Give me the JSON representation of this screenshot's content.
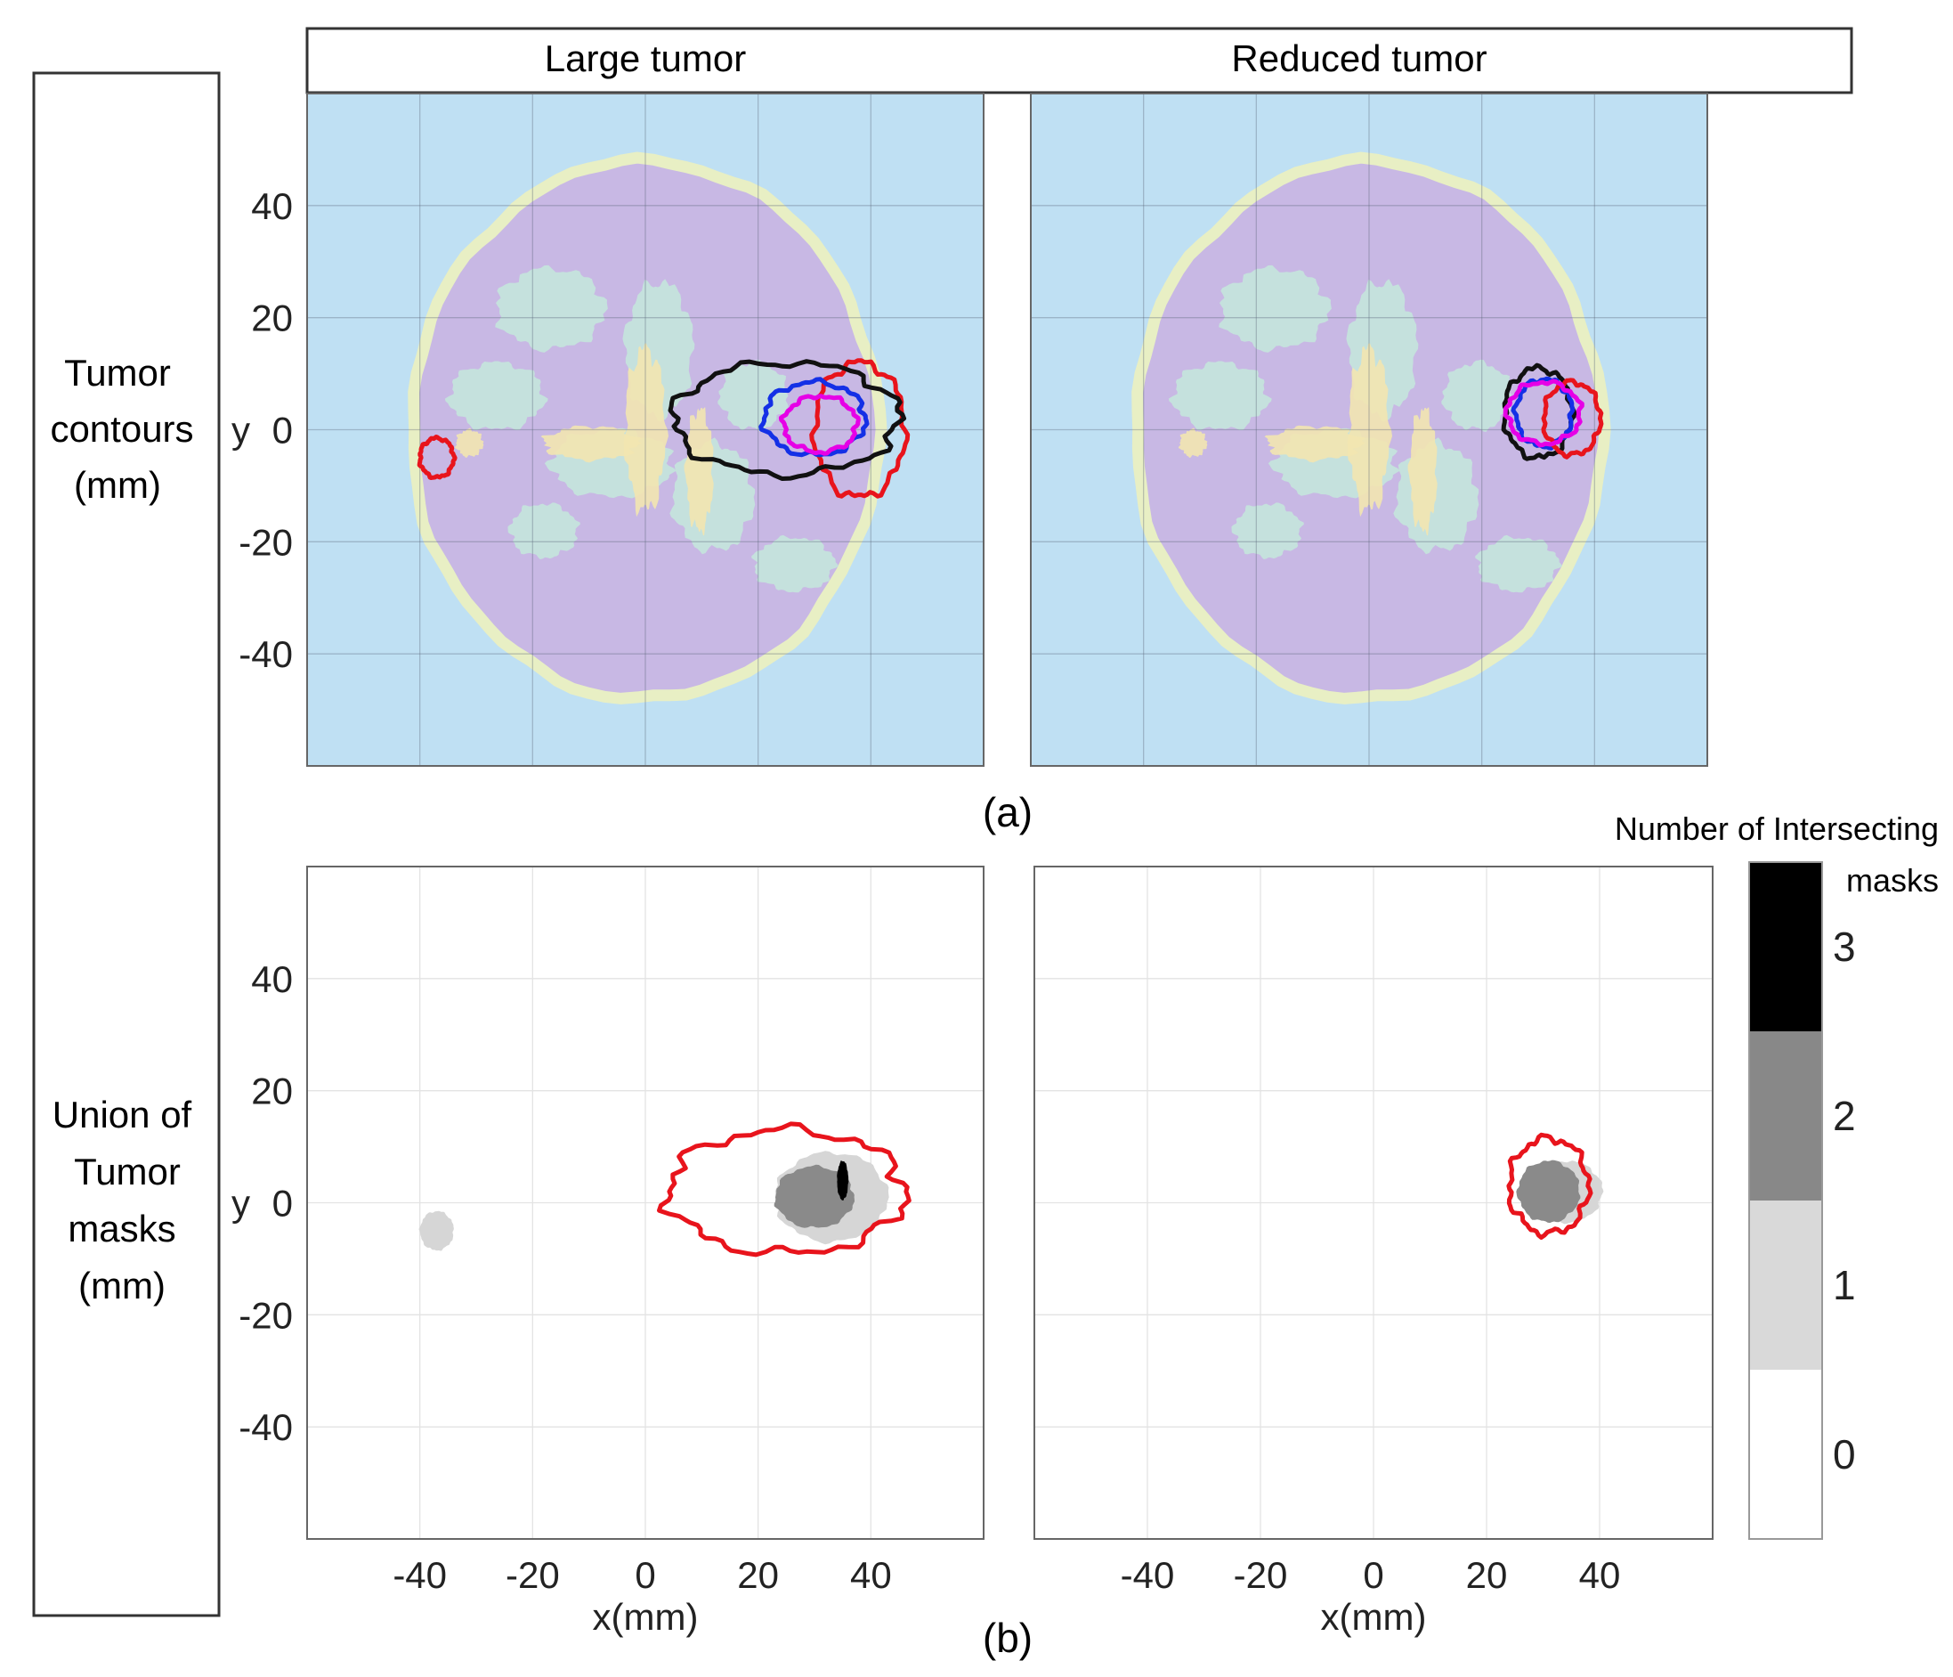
{
  "header": {
    "col_left": "Large tumor",
    "col_right": "Reduced tumor"
  },
  "rows": {
    "top": {
      "label_lines": [
        "Tumor",
        "contours",
        "(mm)"
      ]
    },
    "bottom": {
      "label_lines": [
        "Union of",
        "Tumor",
        "masks",
        "(mm)"
      ]
    }
  },
  "captions": {
    "a": "(a)",
    "b": "(b)"
  },
  "colorbar": {
    "title_lines": [
      "Number of Intersecting",
      "masks"
    ],
    "levels": [
      {
        "label": "3",
        "color": "#000000"
      },
      {
        "label": "2",
        "color": "#888888"
      },
      {
        "label": "1",
        "color": "#d9d9d9"
      },
      {
        "label": "0",
        "color": "#ffffff"
      }
    ]
  },
  "colors": {
    "background_tissue": "#bfe0f3",
    "head_fill": "#c8b8e4",
    "skull_ring": "#e8efc4",
    "white_matter": "#c4e6dc",
    "dense_tissue": "#f2e6b0",
    "contour_red": "#e8141c",
    "contour_black": "#111111",
    "contour_blue": "#1430e6",
    "contour_magenta": "#e600e6",
    "mask_light": "#d6d6d6",
    "mask_mid": "#8a8a8a",
    "mask_dark": "#000000"
  },
  "chart_data": [
    {
      "type": "image-contour",
      "panel": "top-left",
      "title": "Large tumor",
      "xlabel": "",
      "ylabel": "y",
      "xlim": [
        -60,
        60
      ],
      "ylim": [
        -60,
        60
      ],
      "xticks": [],
      "yticks": [
        40,
        20,
        0,
        -20,
        -40
      ],
      "grid": true,
      "series": [
        {
          "name": "contour-red",
          "color": "#e8141c",
          "regions": [
            {
              "center": [
                38,
                0
              ],
              "radius": [
                8,
                12
              ]
            },
            {
              "center": [
                -37,
                -5
              ],
              "radius": [
                3,
                3.5
              ]
            }
          ]
        },
        {
          "name": "contour-black",
          "color": "#111111",
          "regions": [
            {
              "center": [
                25,
                2
              ],
              "radius": [
                20,
                10
              ]
            }
          ]
        },
        {
          "name": "contour-blue",
          "color": "#1430e6",
          "regions": [
            {
              "center": [
                30,
                2
              ],
              "radius": [
                9,
                6.5
              ]
            }
          ]
        },
        {
          "name": "contour-magenta",
          "color": "#e600e6",
          "regions": [
            {
              "center": [
                31,
                1
              ],
              "radius": [
                6.5,
                5
              ]
            }
          ]
        }
      ]
    },
    {
      "type": "image-contour",
      "panel": "top-right",
      "title": "Reduced tumor",
      "xlabel": "",
      "ylabel": "",
      "xlim": [
        -60,
        60
      ],
      "ylim": [
        -60,
        60
      ],
      "xticks": [],
      "yticks": [],
      "grid": true,
      "series": [
        {
          "name": "contour-black",
          "color": "#111111",
          "regions": [
            {
              "center": [
                30,
                3
              ],
              "radius": [
                6,
                8
              ]
            }
          ]
        },
        {
          "name": "contour-blue",
          "color": "#1430e6",
          "regions": [
            {
              "center": [
                31,
                3
              ],
              "radius": [
                5,
                6
              ]
            }
          ]
        },
        {
          "name": "contour-red",
          "color": "#e8141c",
          "regions": [
            {
              "center": [
                36,
                2
              ],
              "radius": [
                5,
                6.5
              ]
            }
          ]
        },
        {
          "name": "contour-magenta",
          "color": "#e600e6",
          "regions": [
            {
              "center": [
                31,
                3
              ],
              "radius": [
                6.5,
                5.5
              ]
            }
          ]
        }
      ]
    },
    {
      "type": "heatmap",
      "panel": "bottom-left",
      "xlabel": "x(mm)",
      "ylabel": "y",
      "xlim": [
        -60,
        60
      ],
      "ylim": [
        -60,
        60
      ],
      "xticks": [
        -40,
        -20,
        0,
        20,
        40
      ],
      "yticks": [
        40,
        20,
        0,
        -20,
        -40
      ],
      "grid": true,
      "mask_regions": [
        {
          "level": 1,
          "center": [
            33,
            1
          ],
          "radius": [
            10,
            8
          ]
        },
        {
          "level": 1,
          "center": [
            -37,
            -5
          ],
          "radius": [
            3,
            3.5
          ]
        },
        {
          "level": 2,
          "center": [
            30,
            1
          ],
          "radius": [
            7,
            5.5
          ]
        },
        {
          "level": 3,
          "center": [
            35,
            4
          ],
          "radius": [
            1,
            3.5
          ]
        }
      ],
      "union_contour": {
        "color": "#e8141c",
        "center": [
          25,
          2
        ],
        "radius": [
          21,
          11
        ]
      }
    },
    {
      "type": "heatmap",
      "panel": "bottom-right",
      "xlabel": "x(mm)",
      "ylabel": "",
      "xlim": [
        -60,
        60
      ],
      "ylim": [
        -60,
        60
      ],
      "xticks": [
        -40,
        -20,
        0,
        20,
        40
      ],
      "yticks": [],
      "grid": true,
      "mask_regions": [
        {
          "level": 1,
          "center": [
            34,
            2
          ],
          "radius": [
            6.5,
            5.5
          ]
        },
        {
          "level": 2,
          "center": [
            31,
            2
          ],
          "radius": [
            5.5,
            5.5
          ]
        }
      ],
      "union_contour": {
        "color": "#e8141c",
        "center": [
          31,
          3
        ],
        "radius": [
          7,
          8.5
        ]
      }
    }
  ]
}
